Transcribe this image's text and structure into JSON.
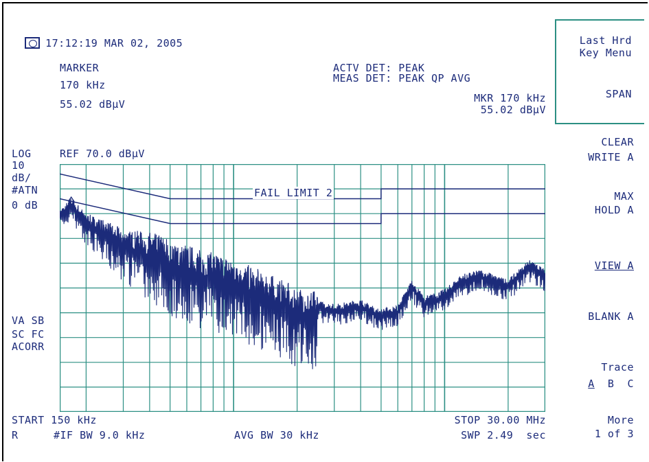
{
  "header": {
    "timestamp": "17:12:19 MAR 02, 2005"
  },
  "marker": {
    "label": "MARKER",
    "freq": "170 kHz",
    "level": "55.02 dBμV"
  },
  "detector": {
    "actv": "ACTV DET: PEAK",
    "meas": "MEAS DET: PEAK QP AVG",
    "mkr_freq": "MKR 170 kHz",
    "mkr_level": "55.02 dBμV"
  },
  "scale": {
    "log": "LOG",
    "ref": "REF 70.0 dBμV",
    "div_value": "10",
    "div_unit": "dB/",
    "atten": "#ATN",
    "atten_value": "0 dB"
  },
  "status_flags": {
    "line1": "VA SB",
    "line2": "SC FC",
    "line3": "ACORR"
  },
  "annotation": {
    "fail": "FAIL LIMIT 2"
  },
  "footer": {
    "start": "START 150 kHz",
    "stop": "STOP 30.00 MHz",
    "r": "R",
    "if_bw": "#IF BW 9.0 kHz",
    "avg_bw": "AVG BW 30 kHz",
    "sweep": "SWP 2.49  sec"
  },
  "softkeys": {
    "last_line1": "Last Hrd",
    "last_line2": "Key Menu",
    "span": "SPAN",
    "clear_line1": "CLEAR",
    "clear_line2": "WRITE A",
    "max_line1": "MAX",
    "max_line2": "HOLD A",
    "view": "VIEW A",
    "blank": "BLANK A",
    "trace_label": "Trace",
    "trace_a": "A",
    "trace_b": "B",
    "trace_c": "C",
    "more_line1": "More",
    "more_line2": "1 of 3"
  },
  "colors": {
    "grid": "#2b8f83",
    "trace": "#1c2b7a",
    "text": "#1c2b7a"
  },
  "chart_data": {
    "type": "line",
    "x_scale": "log",
    "xlim_hz": [
      150000,
      30000000
    ],
    "ylim_dbuv": [
      -30,
      70
    ],
    "marker": {
      "x_hz": 170000,
      "y_dbuv": 55.02
    },
    "limit_lines": [
      {
        "x_hz": [
          150000,
          500000,
          500000,
          5000000,
          5000000,
          30000000
        ],
        "y_dbuv": [
          66,
          56,
          56,
          56,
          60,
          60
        ]
      },
      {
        "x_hz": [
          150000,
          500000,
          500000,
          5000000,
          5000000,
          30000000
        ],
        "y_dbuv": [
          56,
          46,
          46,
          46,
          50,
          50
        ]
      }
    ],
    "trace": {
      "x_hz": [
        150000,
        170000,
        200000,
        250000,
        300000,
        400000,
        500000,
        700000,
        1000000,
        1500000,
        2000000,
        3000000,
        4000000,
        5000000,
        6000000,
        7000000,
        8000000,
        10000000,
        12000000,
        15000000,
        20000000,
        25000000,
        30000000
      ],
      "y_dbuv": [
        50,
        55,
        48,
        44,
        40,
        38,
        35,
        30,
        27,
        20,
        15,
        12,
        14,
        10,
        12,
        22,
        15,
        18,
        24,
        26,
        22,
        30,
        26
      ]
    }
  }
}
